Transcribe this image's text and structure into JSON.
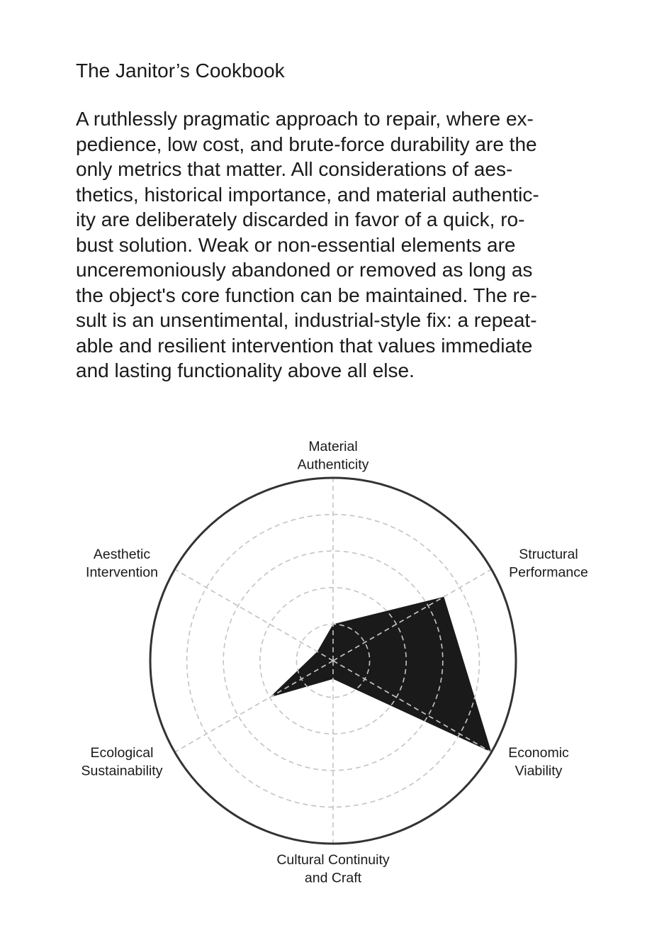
{
  "title": "The Janitor’s Cookbook",
  "description_lines": [
    "A ruthlessly pragmatic approach to repair, where ex-",
    "pedience, low cost, and brute-force durability are the",
    "only metrics that matter. All considerations of aes-",
    "thetics, historical importance, and material authentic-",
    "ity are deliberately discarded in favor of a quick, ro-",
    "bust solution. Weak or non-essential elements are",
    "unceremoniously abandoned or removed as long as",
    "the object's core function can be maintained. The re-",
    "sult is an unsentimental, industrial-style fix: a repeat-",
    "able and resilient intervention that values immediate",
    "and lasting functionality above all else."
  ],
  "chart_data": {
    "type": "radar",
    "axes": [
      {
        "label_lines": [
          "Material",
          "Authenticity"
        ],
        "value": 1
      },
      {
        "label_lines": [
          "Structural",
          "Performance"
        ],
        "value": 3.5
      },
      {
        "label_lines": [
          "Economic",
          "Viability"
        ],
        "value": 5
      },
      {
        "label_lines": [
          "Cultural Continuity",
          "and Craft"
        ],
        "value": 0.5
      },
      {
        "label_lines": [
          "Ecological",
          "Sustainability"
        ],
        "value": 2
      },
      {
        "label_lines": [
          "Aesthetic",
          "Intervention"
        ],
        "value": 0.5
      }
    ],
    "range": [
      0,
      5
    ],
    "rings": [
      1,
      2,
      3,
      4
    ],
    "grid": true,
    "fill_color": "#1a1a1a",
    "grid_color": "#c4c4c4",
    "outline_color": "#333333"
  }
}
